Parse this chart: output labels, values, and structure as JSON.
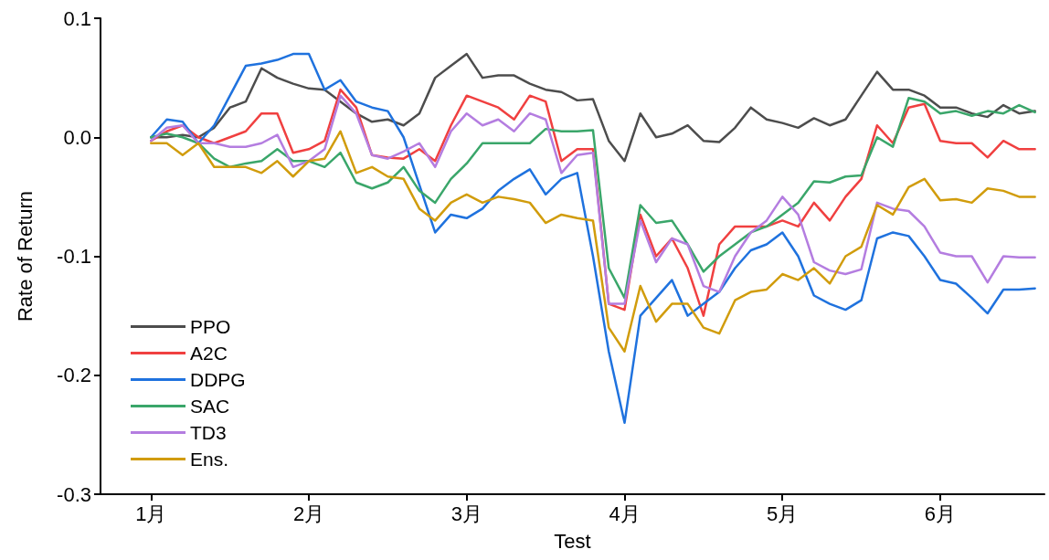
{
  "chart_data": {
    "type": "line",
    "xlabel": "Test",
    "ylabel": "Rate of Return",
    "x": [
      1.0,
      1.1,
      1.2,
      1.3,
      1.4,
      1.5,
      1.6,
      1.7,
      1.8,
      1.9,
      2.0,
      2.1,
      2.2,
      2.3,
      2.4,
      2.5,
      2.6,
      2.7,
      2.8,
      2.9,
      3.0,
      3.1,
      3.2,
      3.3,
      3.4,
      3.5,
      3.6,
      3.7,
      3.8,
      3.9,
      4.0,
      4.1,
      4.2,
      4.3,
      4.4,
      4.5,
      4.6,
      4.7,
      4.8,
      4.9,
      5.0,
      5.1,
      5.2,
      5.3,
      5.4,
      5.5,
      5.6,
      5.7,
      5.8,
      5.9,
      6.0,
      6.1,
      6.2,
      6.3,
      6.4,
      6.5,
      6.6
    ],
    "series": [
      {
        "name": "PPO",
        "color": "#4d4d4d",
        "values": [
          0.0,
          0.0,
          0.002,
          0.0,
          0.008,
          0.025,
          0.03,
          0.058,
          0.05,
          0.045,
          0.041,
          0.04,
          0.03,
          0.02,
          0.013,
          0.015,
          0.01,
          0.02,
          0.05,
          0.06,
          0.07,
          0.05,
          0.052,
          0.052,
          0.045,
          0.04,
          0.038,
          0.031,
          0.032,
          -0.003,
          -0.02,
          0.02,
          0.0,
          0.003,
          0.01,
          -0.003,
          -0.004,
          0.008,
          0.025,
          0.015,
          0.012,
          0.008,
          0.016,
          0.01,
          0.015,
          0.035,
          0.055,
          0.04,
          0.04,
          0.035,
          0.025,
          0.025,
          0.02,
          0.017,
          0.027,
          0.02,
          0.022
        ]
      },
      {
        "name": "A2C",
        "color": "#f04040",
        "values": [
          -0.003,
          0.005,
          0.01,
          0.0,
          -0.005,
          0.0,
          0.005,
          0.02,
          0.02,
          -0.013,
          -0.01,
          -0.003,
          0.04,
          0.025,
          -0.015,
          -0.017,
          -0.018,
          -0.01,
          -0.02,
          0.01,
          0.035,
          0.03,
          0.025,
          0.015,
          0.035,
          0.03,
          -0.02,
          -0.01,
          -0.01,
          -0.14,
          -0.145,
          -0.065,
          -0.1,
          -0.085,
          -0.11,
          -0.15,
          -0.09,
          -0.075,
          -0.075,
          -0.075,
          -0.07,
          -0.075,
          -0.055,
          -0.07,
          -0.05,
          -0.035,
          0.01,
          -0.005,
          0.025,
          0.028,
          -0.003,
          -0.005,
          -0.005,
          -0.017,
          -0.003,
          -0.01,
          -0.01
        ]
      },
      {
        "name": "DDPG",
        "color": "#1f72de",
        "values": [
          0.0,
          0.015,
          0.013,
          -0.005,
          0.01,
          0.035,
          0.06,
          0.062,
          0.065,
          0.07,
          0.07,
          0.04,
          0.048,
          0.03,
          0.025,
          0.022,
          0.0,
          -0.04,
          -0.08,
          -0.065,
          -0.068,
          -0.06,
          -0.045,
          -0.035,
          -0.027,
          -0.048,
          -0.035,
          -0.03,
          -0.1,
          -0.18,
          -0.24,
          -0.15,
          -0.135,
          -0.12,
          -0.15,
          -0.14,
          -0.13,
          -0.11,
          -0.095,
          -0.09,
          -0.08,
          -0.1,
          -0.133,
          -0.14,
          -0.145,
          -0.137,
          -0.085,
          -0.08,
          -0.083,
          -0.1,
          -0.12,
          -0.123,
          -0.135,
          -0.148,
          -0.128,
          -0.128,
          -0.127
        ]
      },
      {
        "name": "SAC",
        "color": "#3aa66a",
        "values": [
          0.0,
          0.003,
          0.0,
          -0.005,
          -0.018,
          -0.025,
          -0.022,
          -0.02,
          -0.01,
          -0.02,
          -0.02,
          -0.025,
          -0.013,
          -0.038,
          -0.043,
          -0.038,
          -0.025,
          -0.045,
          -0.055,
          -0.035,
          -0.022,
          -0.005,
          -0.005,
          -0.005,
          -0.005,
          0.007,
          0.005,
          0.005,
          0.006,
          -0.11,
          -0.135,
          -0.057,
          -0.072,
          -0.07,
          -0.09,
          -0.113,
          -0.1,
          -0.09,
          -0.08,
          -0.075,
          -0.065,
          -0.055,
          -0.037,
          -0.038,
          -0.033,
          -0.032,
          0.0,
          -0.008,
          0.033,
          0.03,
          0.02,
          0.022,
          0.018,
          0.022,
          0.02,
          0.027,
          0.021
        ]
      },
      {
        "name": "TD3",
        "color": "#b47de0",
        "values": [
          -0.003,
          0.008,
          0.01,
          -0.005,
          -0.005,
          -0.008,
          -0.008,
          -0.005,
          0.002,
          -0.025,
          -0.02,
          -0.01,
          0.035,
          0.02,
          -0.015,
          -0.018,
          -0.012,
          -0.005,
          -0.025,
          0.005,
          0.02,
          0.01,
          0.015,
          0.005,
          0.02,
          0.015,
          -0.03,
          -0.015,
          -0.013,
          -0.14,
          -0.14,
          -0.07,
          -0.105,
          -0.085,
          -0.09,
          -0.125,
          -0.13,
          -0.1,
          -0.08,
          -0.07,
          -0.05,
          -0.065,
          -0.105,
          -0.112,
          -0.115,
          -0.111,
          -0.055,
          -0.06,
          -0.062,
          -0.075,
          -0.097,
          -0.1,
          -0.1,
          -0.122,
          -0.1,
          -0.101,
          -0.101
        ]
      },
      {
        "name": "Ens.",
        "color": "#d19c0c",
        "values": [
          -0.005,
          -0.005,
          -0.015,
          -0.005,
          -0.025,
          -0.025,
          -0.025,
          -0.03,
          -0.02,
          -0.033,
          -0.02,
          -0.018,
          0.005,
          -0.03,
          -0.025,
          -0.033,
          -0.035,
          -0.06,
          -0.07,
          -0.055,
          -0.048,
          -0.055,
          -0.05,
          -0.052,
          -0.055,
          -0.072,
          -0.065,
          -0.068,
          -0.07,
          -0.16,
          -0.18,
          -0.125,
          -0.155,
          -0.14,
          -0.14,
          -0.16,
          -0.165,
          -0.137,
          -0.13,
          -0.128,
          -0.115,
          -0.12,
          -0.11,
          -0.123,
          -0.1,
          -0.092,
          -0.057,
          -0.065,
          -0.042,
          -0.035,
          -0.053,
          -0.052,
          -0.055,
          -0.043,
          -0.045,
          -0.05,
          -0.05
        ]
      }
    ],
    "xlim": [
      0.68,
      6.66
    ],
    "xticks": [
      {
        "value": 1,
        "label": "1月"
      },
      {
        "value": 2,
        "label": "2月"
      },
      {
        "value": 3,
        "label": "3月"
      },
      {
        "value": 4,
        "label": "4月"
      },
      {
        "value": 5,
        "label": "5月"
      },
      {
        "value": 6,
        "label": "6月"
      }
    ],
    "ylim": [
      -0.3,
      0.1
    ],
    "yticks": [
      -0.3,
      -0.2,
      -0.1,
      {
        "value": 0,
        "label": "0.0"
      },
      0.1
    ],
    "grid": false,
    "legend": "bottom left",
    "marker": "none",
    "line_style": "solid"
  }
}
